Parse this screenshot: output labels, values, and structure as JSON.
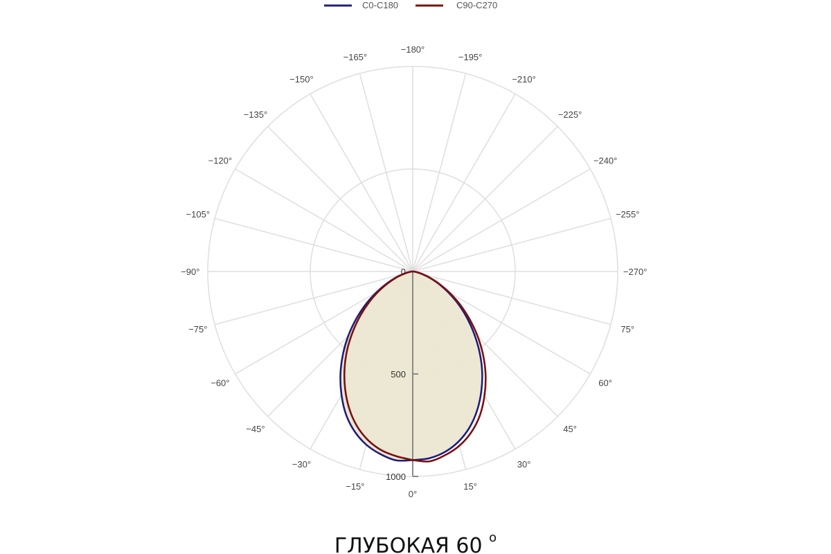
{
  "chart_data": {
    "type": "polar-line",
    "title": "",
    "legend": {
      "placement": "top-center",
      "items": [
        {
          "name": "C0-C180",
          "color": "#1f1f7a"
        },
        {
          "name": "C90-C270",
          "color": "#7a1010"
        }
      ]
    },
    "angular_axis": {
      "unit": "°",
      "tick_labels": [
        "0°",
        "15°",
        "30°",
        "45°",
        "60°",
        "75°",
        "−270°",
        "−255°",
        "−240°",
        "−225°",
        "−210°",
        "−195°",
        "−180°",
        "−165°",
        "−150°",
        "−135°",
        "−120°",
        "−105°",
        "−90°",
        "−75°",
        "−60°",
        "−45°",
        "−30°",
        "−15°"
      ]
    },
    "radial_axis": {
      "range": [
        0,
        1000
      ],
      "tick_labels": [
        "0",
        "500",
        "1000"
      ],
      "grid_values": [
        500,
        1000
      ]
    },
    "grid": true,
    "fill_color": "#ece7d2",
    "series": [
      {
        "name": "C0-C180",
        "color": "#1f1f7a",
        "angles": [
          0,
          5,
          10,
          15,
          20,
          25,
          30,
          35,
          40,
          45,
          50,
          55,
          60,
          65,
          70,
          75,
          80,
          85,
          90
        ],
        "right_values": [
          920,
          915,
          895,
          860,
          810,
          745,
          670,
          590,
          505,
          420,
          340,
          265,
          195,
          135,
          85,
          45,
          20,
          7,
          0
        ],
        "left_values": [
          920,
          925,
          905,
          875,
          830,
          770,
          695,
          615,
          530,
          445,
          360,
          280,
          205,
          140,
          88,
          47,
          21,
          7,
          0
        ]
      },
      {
        "name": "C90-C270",
        "color": "#7a1010",
        "angles": [
          0,
          5,
          10,
          15,
          20,
          25,
          30,
          35,
          40,
          45,
          50,
          55,
          60,
          65,
          70,
          75,
          80,
          85,
          90
        ],
        "right_values": [
          920,
          930,
          910,
          880,
          835,
          775,
          700,
          620,
          535,
          448,
          362,
          282,
          208,
          142,
          88,
          47,
          21,
          7,
          0
        ],
        "left_values": [
          920,
          905,
          885,
          850,
          800,
          735,
          660,
          580,
          497,
          412,
          332,
          258,
          190,
          130,
          82,
          43,
          19,
          6,
          0
        ]
      }
    ]
  },
  "caption": {
    "text": "ГЛУБОКАЯ 60",
    "superscript": "o"
  }
}
